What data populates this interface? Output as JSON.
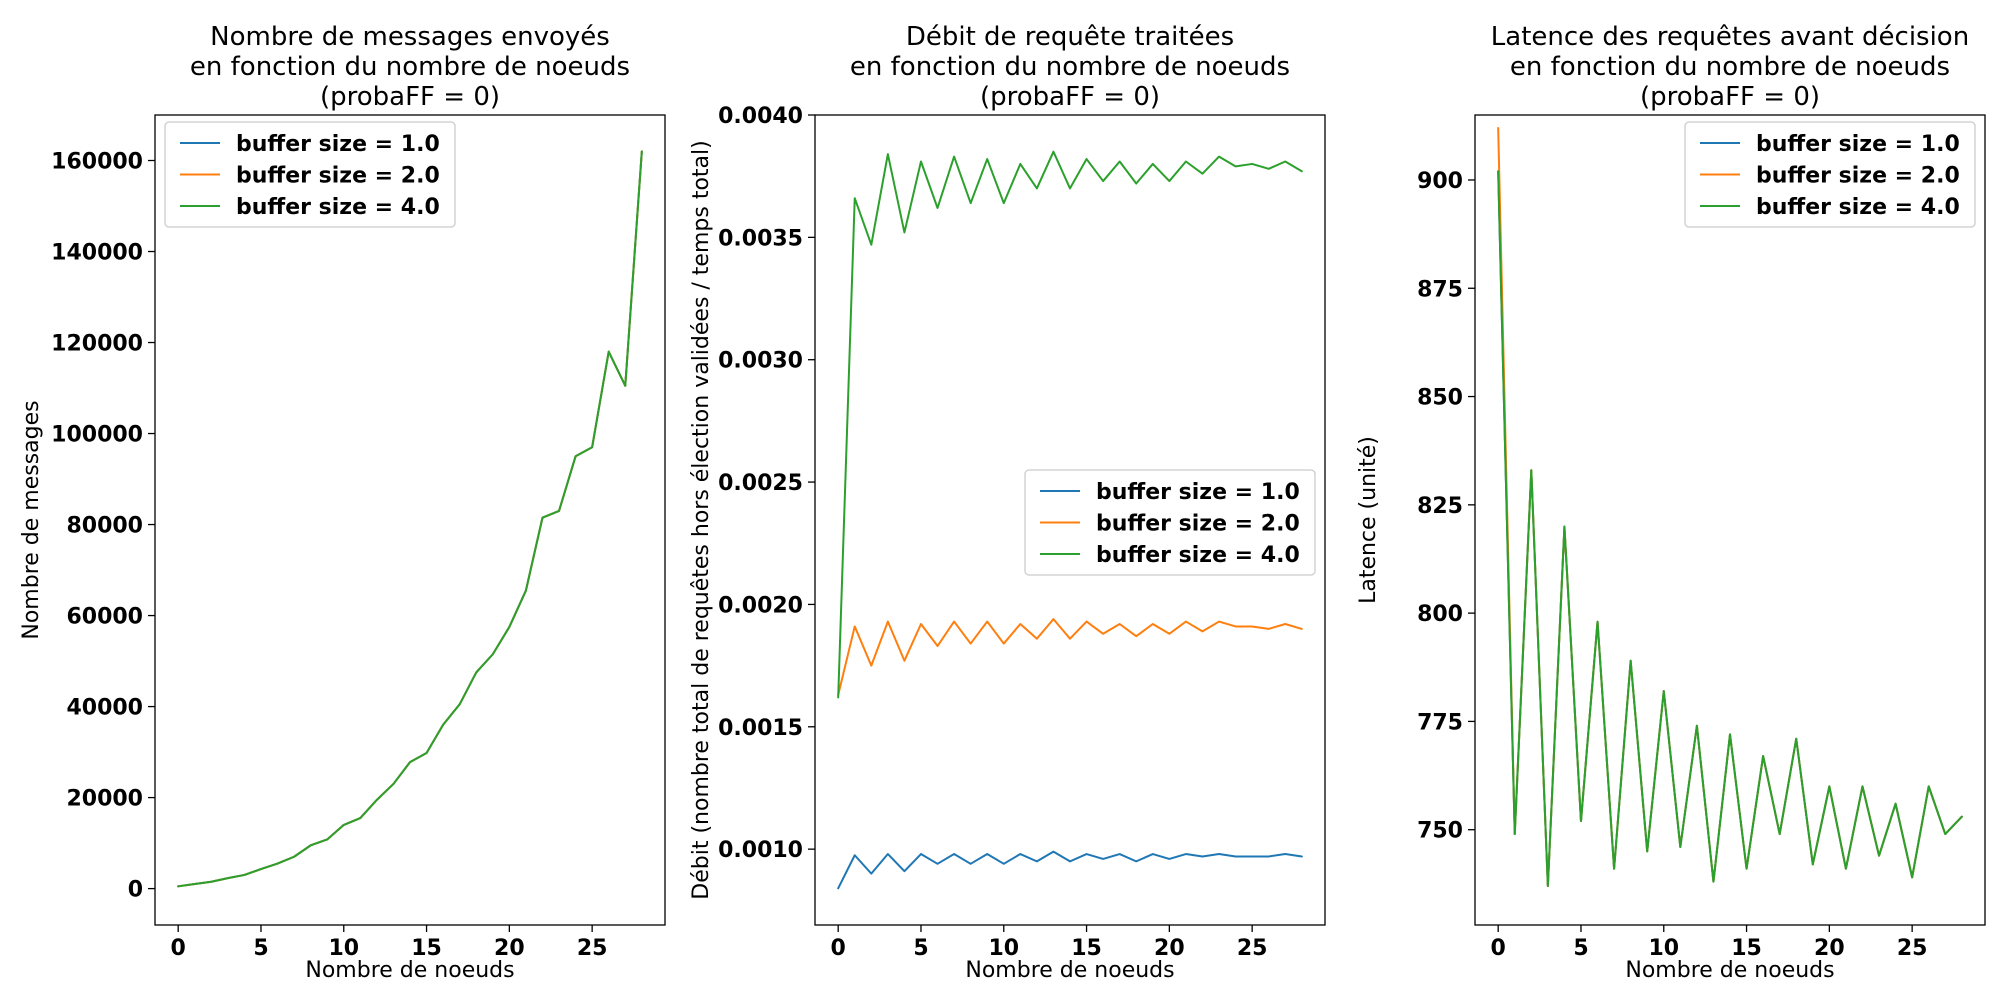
{
  "colors": {
    "series": [
      "#1f77b4",
      "#ff7f0e",
      "#2ca02c"
    ],
    "axis": "#000000",
    "legend_frame": "#cccccc"
  },
  "chart_data": [
    {
      "type": "line",
      "title_lines": [
        "Nombre de messages envoyés",
        "en fonction du nombre de noeuds",
        "(probaFF = 0)"
      ],
      "xlabel": "Nombre de noeuds",
      "ylabel": "Nombre de messages",
      "xlim": [
        -1.4,
        29.4
      ],
      "ylim": [
        -8000,
        170000
      ],
      "xticks": [
        0,
        5,
        10,
        15,
        20,
        25
      ],
      "yticks": [
        0,
        20000,
        40000,
        60000,
        80000,
        100000,
        120000,
        140000,
        160000
      ],
      "legend_position": "upper-left",
      "grid": false,
      "x": [
        0,
        1,
        2,
        3,
        4,
        5,
        6,
        7,
        8,
        9,
        10,
        11,
        12,
        13,
        14,
        15,
        16,
        17,
        18,
        19,
        20,
        21,
        22,
        23,
        24,
        25,
        26,
        27,
        28
      ],
      "series": [
        {
          "name": "buffer size = 1.0",
          "values": [
            500,
            1000,
            1500,
            2300,
            3000,
            4300,
            5500,
            7000,
            9500,
            10800,
            14000,
            15500,
            19500,
            23000,
            27800,
            29800,
            36000,
            40500,
            47500,
            51500,
            57500,
            65500,
            81500,
            83000,
            95000,
            97000,
            118000,
            110500,
            162000
          ]
        },
        {
          "name": "buffer size = 2.0",
          "values": [
            500,
            1000,
            1500,
            2300,
            3000,
            4300,
            5500,
            7000,
            9500,
            10800,
            14000,
            15500,
            19500,
            23000,
            27800,
            29800,
            36000,
            40500,
            47500,
            51500,
            57500,
            65500,
            81500,
            83000,
            95000,
            97000,
            118000,
            110500,
            162000
          ]
        },
        {
          "name": "buffer size = 4.0",
          "values": [
            500,
            1000,
            1500,
            2300,
            3000,
            4300,
            5500,
            7000,
            9500,
            10800,
            14000,
            15500,
            19500,
            23000,
            27800,
            29800,
            36000,
            40500,
            47500,
            51500,
            57500,
            65500,
            81500,
            83000,
            95000,
            97000,
            118000,
            110500,
            162000
          ]
        }
      ]
    },
    {
      "type": "line",
      "title_lines": [
        "Débit de requête traitées",
        "en fonction du nombre de noeuds",
        "(probaFF = 0)"
      ],
      "xlabel": "Nombre de noeuds",
      "ylabel": "Débit (nombre total de requêtes hors élection validées / temps total)",
      "xlim": [
        -1.4,
        29.4
      ],
      "ylim": [
        0.00069,
        0.004
      ],
      "xticks": [
        0,
        5,
        10,
        15,
        20,
        25
      ],
      "yticks": [
        0.001,
        0.0015,
        0.002,
        0.0025,
        0.003,
        0.0035,
        0.004
      ],
      "ytick_decimals": 4,
      "legend_position": "center-right",
      "grid": false,
      "x": [
        0,
        1,
        2,
        3,
        4,
        5,
        6,
        7,
        8,
        9,
        10,
        11,
        12,
        13,
        14,
        15,
        16,
        17,
        18,
        19,
        20,
        21,
        22,
        23,
        24,
        25,
        26,
        27,
        28
      ],
      "series": [
        {
          "name": "buffer size = 1.0",
          "values": [
            0.00084,
            0.000975,
            0.0009,
            0.00098,
            0.00091,
            0.00098,
            0.00094,
            0.00098,
            0.00094,
            0.00098,
            0.00094,
            0.00098,
            0.00095,
            0.00099,
            0.00095,
            0.00098,
            0.00096,
            0.00098,
            0.00095,
            0.00098,
            0.00096,
            0.00098,
            0.00097,
            0.00098,
            0.00097,
            0.00097,
            0.00097,
            0.00098,
            0.00097
          ]
        },
        {
          "name": "buffer size = 2.0",
          "values": [
            0.00163,
            0.00191,
            0.00175,
            0.00193,
            0.00177,
            0.00192,
            0.00183,
            0.00193,
            0.00184,
            0.00193,
            0.00184,
            0.00192,
            0.00186,
            0.00194,
            0.00186,
            0.00193,
            0.00188,
            0.00192,
            0.00187,
            0.00192,
            0.00188,
            0.00193,
            0.00189,
            0.00193,
            0.00191,
            0.00191,
            0.0019,
            0.00192,
            0.0019
          ]
        },
        {
          "name": "buffer size = 4.0",
          "values": [
            0.00162,
            0.00366,
            0.00347,
            0.00384,
            0.00352,
            0.00381,
            0.00362,
            0.00383,
            0.00364,
            0.00382,
            0.00364,
            0.0038,
            0.0037,
            0.00385,
            0.0037,
            0.00382,
            0.00373,
            0.00381,
            0.00372,
            0.0038,
            0.00373,
            0.00381,
            0.00376,
            0.00383,
            0.00379,
            0.0038,
            0.00378,
            0.00381,
            0.00377
          ]
        }
      ]
    },
    {
      "type": "line",
      "title_lines": [
        "Latence des requêtes avant décision",
        "en fonction du nombre de noeuds",
        "(probaFF = 0)"
      ],
      "xlabel": "Nombre de noeuds",
      "ylabel": "Latence (unité)",
      "xlim": [
        -1.4,
        29.4
      ],
      "ylim": [
        728,
        915
      ],
      "xticks": [
        0,
        5,
        10,
        15,
        20,
        25
      ],
      "yticks": [
        750,
        775,
        800,
        825,
        850,
        875,
        900
      ],
      "legend_position": "upper-right",
      "grid": false,
      "x": [
        0,
        1,
        2,
        3,
        4,
        5,
        6,
        7,
        8,
        9,
        10,
        11,
        12,
        13,
        14,
        15,
        16,
        17,
        18,
        19,
        20,
        21,
        22,
        23,
        24,
        25,
        26,
        27,
        28
      ],
      "series": [
        {
          "name": "buffer size = 1.0",
          "values": [
            902,
            749,
            833,
            737,
            820,
            752,
            798,
            741,
            789,
            745,
            782,
            746,
            774,
            738,
            772,
            741,
            767,
            749,
            771,
            742,
            760,
            741,
            760,
            744,
            756,
            739,
            760,
            749,
            753
          ]
        },
        {
          "name": "buffer size = 2.0",
          "values": [
            912,
            749,
            833,
            737,
            820,
            752,
            798,
            741,
            789,
            745,
            782,
            746,
            774,
            738,
            772,
            741,
            767,
            749,
            771,
            742,
            760,
            741,
            760,
            744,
            756,
            739,
            760,
            749,
            753
          ]
        },
        {
          "name": "buffer size = 4.0",
          "values": [
            902,
            749,
            833,
            737,
            820,
            752,
            798,
            741,
            789,
            745,
            782,
            746,
            774,
            738,
            772,
            741,
            767,
            749,
            771,
            742,
            760,
            741,
            760,
            744,
            756,
            739,
            760,
            749,
            753
          ]
        }
      ]
    }
  ]
}
